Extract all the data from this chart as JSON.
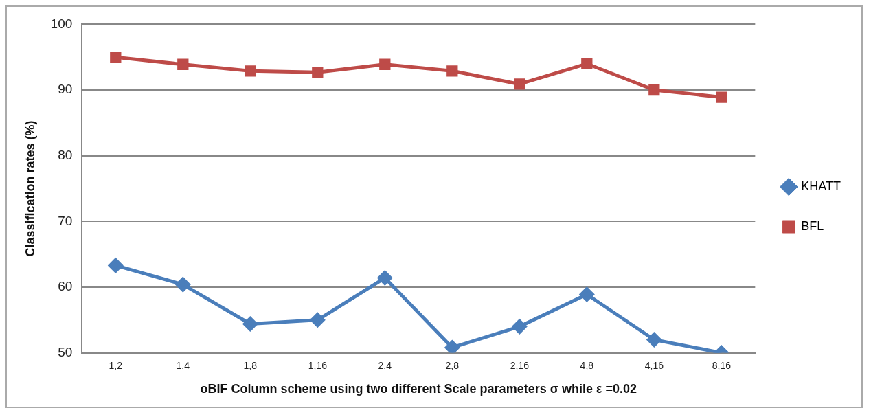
{
  "chart_data": {
    "type": "line",
    "xlabel": "oBIF Column scheme using two different Scale parameters σ while ε =0.02",
    "ylabel": "Classification rates (%)",
    "categories": [
      "1,2",
      "1,4",
      "1,8",
      "1,16",
      "2,4",
      "2,8",
      "2,16",
      "4,8",
      "4,16",
      "8,16"
    ],
    "series": [
      {
        "name": "KHATT",
        "color": "#4a7ebb",
        "marker": "diamond",
        "values": [
          63.3,
          60.4,
          54.4,
          55,
          61.4,
          50.8,
          54,
          58.9,
          52,
          50
        ]
      },
      {
        "name": "BFL",
        "color": "#be4b48",
        "marker": "square",
        "values": [
          95,
          93.9,
          92.9,
          92.7,
          93.9,
          92.9,
          90.9,
          94,
          90,
          88.9
        ]
      }
    ],
    "ylim": [
      50,
      100
    ],
    "yticks": [
      50,
      60,
      70,
      80,
      90,
      100
    ],
    "grid": "y",
    "legend": "right",
    "line_style": "solid"
  }
}
